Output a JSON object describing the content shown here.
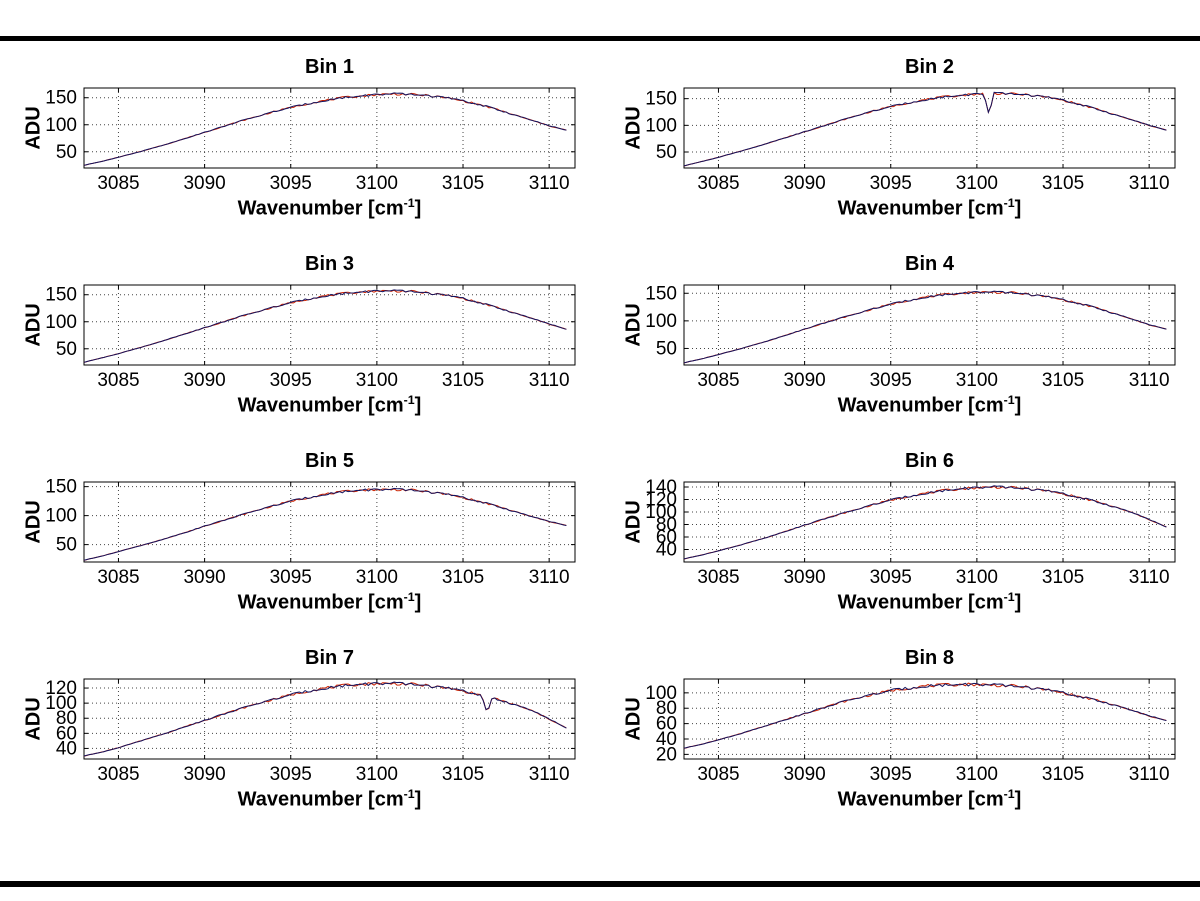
{
  "page": {
    "background": "#ffffff"
  },
  "decor": {
    "top_bar_color": "#000000",
    "bottom_bar_color": "#000000"
  },
  "labels": {
    "ylabel": "ADU",
    "xlabel_prefix": "Wavenumber [cm",
    "xlabel_sup": "-1",
    "xlabel_suffix": "]"
  },
  "chart_data": {
    "type": "line",
    "xlabel": "Wavenumber [cm^-1]",
    "ylabel": "ADU",
    "grid": true,
    "legend": "none",
    "xlim": [
      3083,
      3111.5
    ],
    "xticks": [
      3085,
      3090,
      3095,
      3100,
      3105,
      3110
    ],
    "x": [
      3083,
      3084,
      3085,
      3086,
      3087,
      3088,
      3089,
      3090,
      3091,
      3092,
      3093,
      3094,
      3095,
      3096,
      3097,
      3098,
      3099,
      3100,
      3101,
      3102,
      3103,
      3104,
      3105,
      3106,
      3107,
      3108,
      3109,
      3110,
      3111
    ],
    "series_style": [
      {
        "name": "measured-trace",
        "color": "#cc2200"
      },
      {
        "name": "overlay-trace",
        "color": "#14145f"
      }
    ],
    "subplots": [
      {
        "title": "Bin 1",
        "yticks": [
          50,
          100,
          150
        ],
        "ylim": [
          20,
          168
        ],
        "values": [
          25,
          32,
          40,
          48,
          57,
          66,
          76,
          86,
          96,
          106,
          115,
          124,
          132,
          139,
          145,
          150,
          153,
          156,
          157,
          156,
          154,
          150,
          144,
          137,
          128,
          118,
          108,
          98,
          90
        ],
        "dips": []
      },
      {
        "title": "Bin 2",
        "yticks": [
          50,
          100,
          150
        ],
        "ylim": [
          20,
          170
        ],
        "values": [
          24,
          32,
          40,
          49,
          58,
          68,
          78,
          88,
          98,
          108,
          118,
          127,
          135,
          142,
          148,
          153,
          156,
          159,
          160,
          159,
          157,
          153,
          147,
          139,
          130,
          120,
          110,
          100,
          91
        ],
        "dips": [
          {
            "x": 3100.7,
            "y": 120
          }
        ]
      },
      {
        "title": "Bin 3",
        "yticks": [
          50,
          100,
          150
        ],
        "ylim": [
          20,
          168
        ],
        "values": [
          25,
          33,
          41,
          50,
          59,
          69,
          79,
          89,
          99,
          109,
          118,
          127,
          135,
          142,
          148,
          152,
          155,
          157,
          157,
          156,
          153,
          149,
          143,
          135,
          126,
          116,
          106,
          96,
          86
        ],
        "dips": []
      },
      {
        "title": "Bin 4",
        "yticks": [
          50,
          100,
          150
        ],
        "ylim": [
          20,
          165
        ],
        "values": [
          24,
          31,
          39,
          47,
          56,
          65,
          75,
          85,
          95,
          104,
          113,
          122,
          130,
          137,
          143,
          147,
          150,
          152,
          152,
          151,
          148,
          144,
          138,
          131,
          123,
          113,
          103,
          93,
          85
        ],
        "dips": []
      },
      {
        "title": "Bin 5",
        "yticks": [
          50,
          100,
          150
        ],
        "ylim": [
          20,
          158
        ],
        "values": [
          23,
          30,
          38,
          46,
          54,
          63,
          72,
          82,
          91,
          100,
          109,
          117,
          125,
          131,
          137,
          141,
          144,
          145,
          145,
          144,
          141,
          137,
          131,
          124,
          116,
          107,
          98,
          90,
          83
        ],
        "dips": []
      },
      {
        "title": "Bin 6",
        "yticks": [
          40,
          60,
          80,
          100,
          120,
          140
        ],
        "ylim": [
          20,
          148
        ],
        "values": [
          25,
          31,
          38,
          45,
          53,
          61,
          70,
          79,
          88,
          96,
          104,
          112,
          119,
          125,
          130,
          134,
          137,
          139,
          140,
          139,
          137,
          134,
          129,
          123,
          116,
          108,
          99,
          88,
          76
        ],
        "dips": []
      },
      {
        "title": "Bin 7",
        "yticks": [
          40,
          60,
          80,
          100,
          120
        ],
        "ylim": [
          26,
          132
        ],
        "values": [
          30,
          35,
          41,
          48,
          55,
          62,
          70,
          77,
          85,
          92,
          99,
          105,
          111,
          116,
          120,
          123,
          125,
          126,
          126,
          125,
          123,
          120,
          116,
          111,
          105,
          98,
          90,
          79,
          67
        ],
        "dips": [
          {
            "x": 3106.4,
            "y": 86
          }
        ]
      },
      {
        "title": "Bin 8",
        "yticks": [
          20,
          40,
          60,
          80,
          100
        ],
        "ylim": [
          14,
          118
        ],
        "values": [
          28,
          33,
          39,
          45,
          52,
          59,
          66,
          73,
          80,
          87,
          93,
          98,
          103,
          106,
          109,
          110,
          111,
          111,
          110,
          109,
          107,
          104,
          100,
          95,
          90,
          84,
          77,
          70,
          64
        ],
        "dips": []
      }
    ]
  }
}
